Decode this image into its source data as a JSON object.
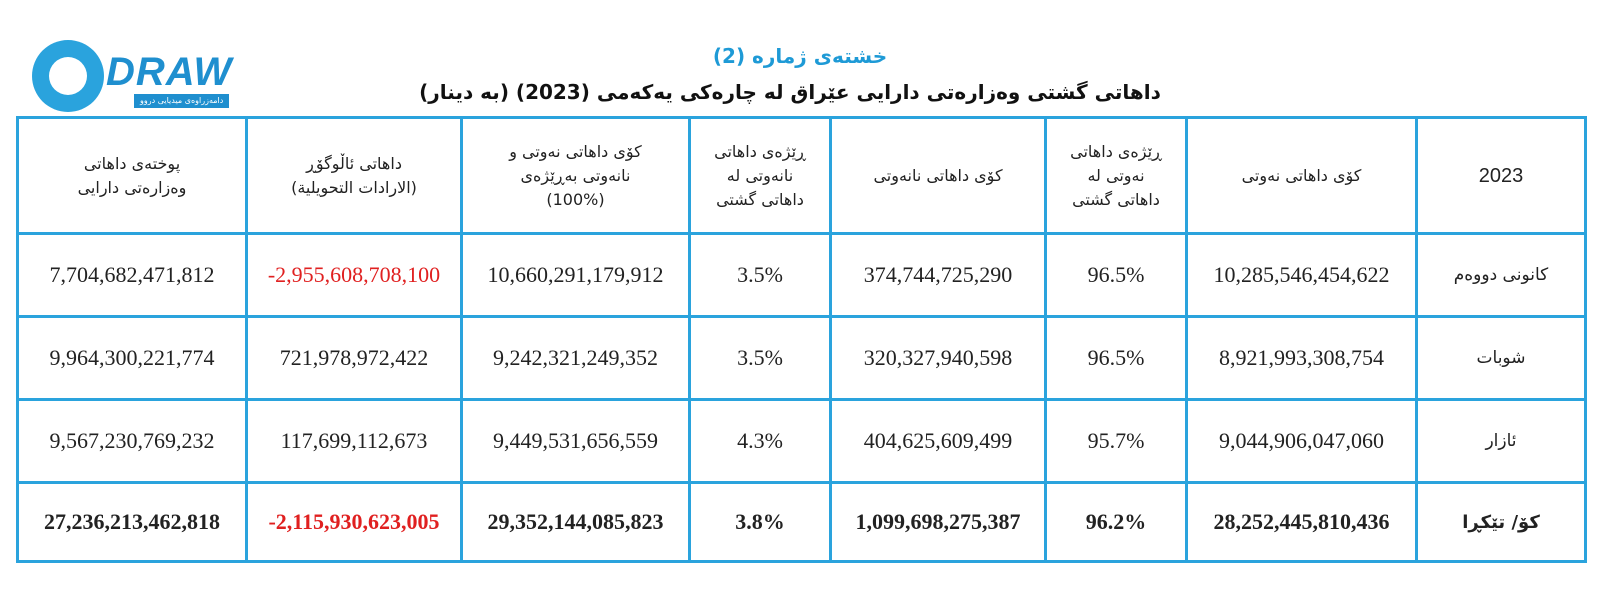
{
  "logo": {
    "word": "DRAW",
    "letter": "D",
    "tagline": "دامەزراوەی میدیایی دروو"
  },
  "title": {
    "number": "خشتەی ژمارە (2)",
    "main": "داهاتی گشتی وەزارەتی دارایی عێراق لە چارەکی یەکەمی (2023) (بە دینار)"
  },
  "table": {
    "headers": {
      "year": "2023",
      "oil_revenue": "كۆی داهاتی نەوتی",
      "oil_ratio": [
        "ڕێژەی داهاتی",
        "نەوتی لە",
        "داهاتی گشتی"
      ],
      "nonoil_revenue": "كۆی داهاتی نانەوتی",
      "nonoil_ratio": [
        "ڕێژەی داهاتی",
        "نانەوتی لە",
        "داهاتی گشتی"
      ],
      "total_oil_nonoil": [
        "كۆی داهاتی نەوتی و",
        "نانەوتی بەڕێژەی",
        "(100%)"
      ],
      "transfer_revenue": [
        "داهاتی ئاڵوگۆڕ",
        "(الارادات التحويلية)"
      ],
      "ministry_revenue": [
        "پوختەی داهاتی",
        "وەزارەتی دارایی"
      ]
    },
    "rows": [
      {
        "label": "کانونی دووەم",
        "oil_revenue": "10,285,546,454,622",
        "oil_ratio": "96.5%",
        "nonoil_revenue": "374,744,725,290",
        "nonoil_ratio": "3.5%",
        "total": "10,660,291,179,912",
        "transfer": "-2,955,608,708,100",
        "ministry": "7,704,682,471,812"
      },
      {
        "label": "شوبات",
        "oil_revenue": "8,921,993,308,754",
        "oil_ratio": "96.5%",
        "nonoil_revenue": "320,327,940,598",
        "nonoil_ratio": "3.5%",
        "total": "9,242,321,249,352",
        "transfer": "721,978,972,422",
        "ministry": "9,964,300,221,774"
      },
      {
        "label": "ئازار",
        "oil_revenue": "9,044,906,047,060",
        "oil_ratio": "95.7%",
        "nonoil_revenue": "404,625,609,499",
        "nonoil_ratio": "4.3%",
        "total": "9,449,531,656,559",
        "transfer": "117,699,112,673",
        "ministry": "9,567,230,769,232"
      }
    ],
    "total_row": {
      "label": "کۆ/ تێکڕا",
      "oil_revenue": "28,252,445,810,436",
      "oil_ratio": "96.2%",
      "nonoil_revenue": "1,099,698,275,387",
      "nonoil_ratio": "3.8%",
      "total": "29,352,144,085,823",
      "transfer": "-2,115,930,623,005",
      "ministry": "27,236,213,462,818"
    }
  },
  "colors": {
    "accent": "#2aa3dd",
    "negative": "#e02020",
    "text": "#222222"
  }
}
